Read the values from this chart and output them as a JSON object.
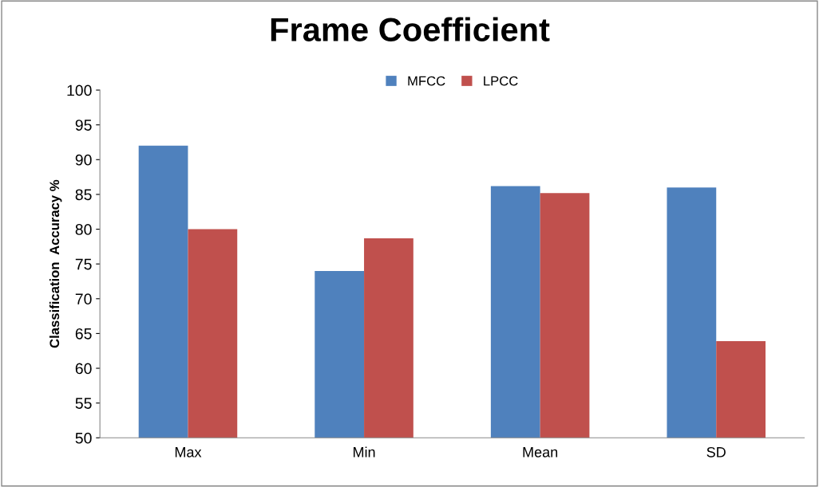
{
  "chart_data": {
    "type": "bar",
    "title": "Frame Coefficient",
    "ylabel": "Classification  Accuracy %",
    "categories": [
      "Max",
      "Min",
      "Mean",
      "SD"
    ],
    "series": [
      {
        "name": "MFCC",
        "color": "#4f81bd",
        "values": [
          92.0,
          74.0,
          86.2,
          86.0
        ]
      },
      {
        "name": "LPCC",
        "color": "#c0504d",
        "values": [
          80.0,
          78.7,
          85.2,
          63.9
        ]
      }
    ],
    "ylim": [
      50,
      100
    ],
    "yticks": [
      50,
      55,
      60,
      65,
      70,
      75,
      80,
      85,
      90,
      95,
      100
    ],
    "grid": false,
    "legend": "top"
  }
}
